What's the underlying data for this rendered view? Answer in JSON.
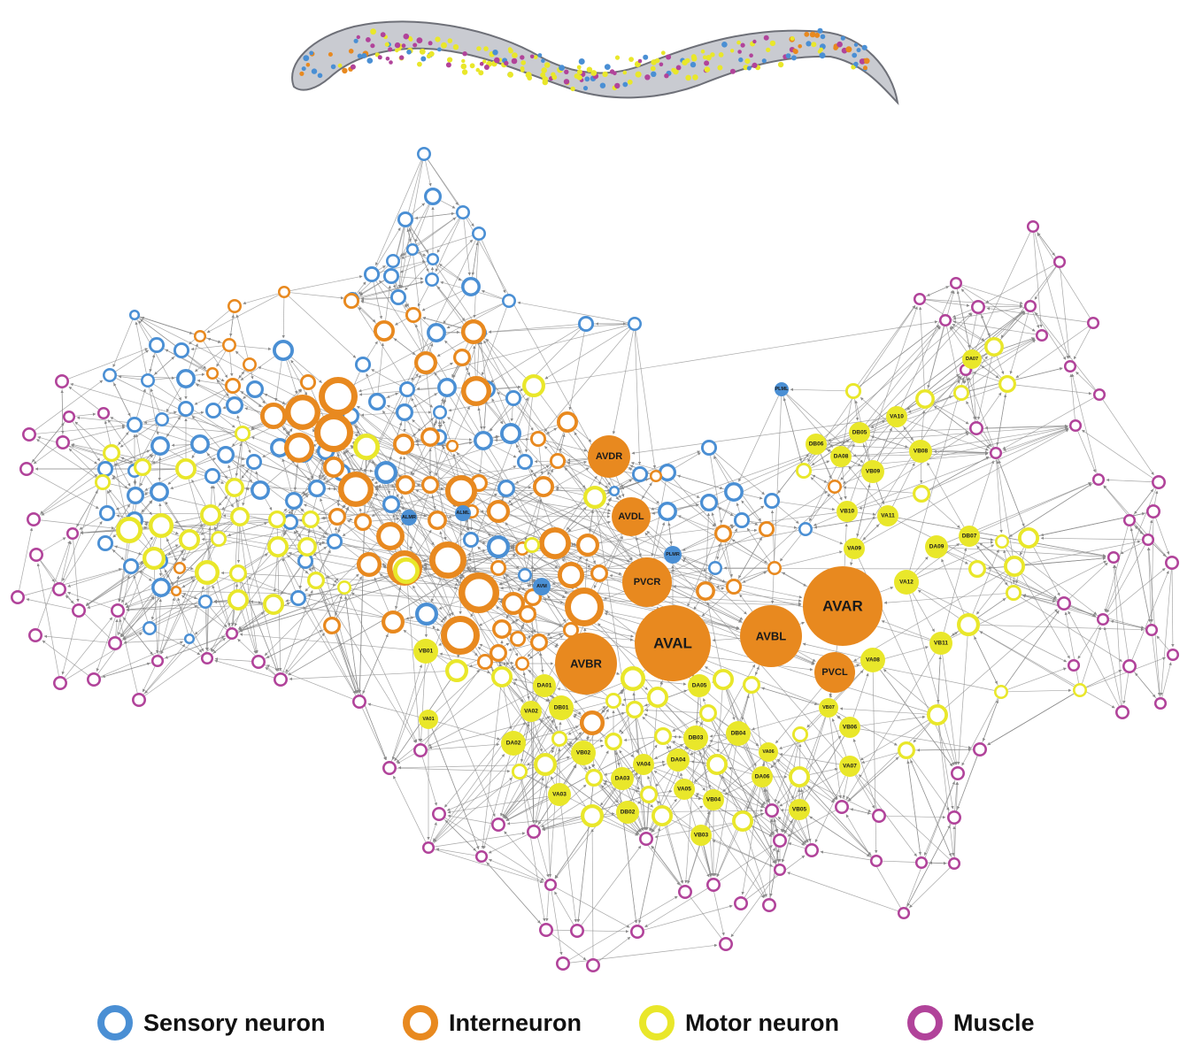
{
  "colors": {
    "sensory": "#4a8fd4",
    "inter": "#e8891f",
    "motor": "#e9e72a",
    "muscle": "#b1439a",
    "edge": "#8a8a8a",
    "worm_body": "#c9cbd1",
    "worm_outline": "#6e7078"
  },
  "legend": {
    "items": [
      {
        "key": "sensory",
        "label": "Sensory neuron"
      },
      {
        "key": "inter",
        "label": "Interneuron"
      },
      {
        "key": "motor",
        "label": "Motor neuron"
      },
      {
        "key": "muscle",
        "label": "Muscle"
      }
    ]
  },
  "labeled_nodes": {
    "AVDR": "AVDR",
    "AVDL": "AVDL",
    "PVCR": "PVCR",
    "AVAL": "AVAL",
    "AVBR": "AVBR",
    "AVBL": "AVBL",
    "AVAR": "AVAR",
    "PVCL": "PVCL",
    "ALMR": "ALMR",
    "ALML": "ALML",
    "AVM": "AVM",
    "PLMR": "PLMR",
    "PLML": "PLML",
    "DA07": "DA07",
    "DB06": "DB06",
    "DB05": "DB05",
    "VA10": "VA10",
    "DA08": "DA08",
    "VB08": "VB08",
    "VB09": "VB09",
    "VB10": "VB10",
    "VA11": "VA11",
    "DB07": "DB07",
    "DA09": "DA09",
    "VA09": "VA09",
    "VA12": "VA12",
    "VB11": "VB11",
    "VA08": "VA08",
    "VB07": "VB07",
    "VB06": "VB06",
    "VA07": "VA07",
    "VB05": "VB05",
    "VB01": "VB01",
    "VA01": "VA01",
    "DA01": "DA01",
    "DB01": "DB01",
    "VA02": "VA02",
    "DA02": "DA02",
    "VB02": "VB02",
    "DA05": "DA05",
    "DB03": "DB03",
    "DB04": "DB04",
    "VA04": "VA04",
    "DA04": "DA04",
    "VA06": "VA06",
    "DA03": "DA03",
    "VA05": "VA05",
    "DA06": "DA06",
    "VA03": "VA03",
    "DB02": "DB02",
    "VB04": "VB04",
    "VB03": "VB03"
  }
}
